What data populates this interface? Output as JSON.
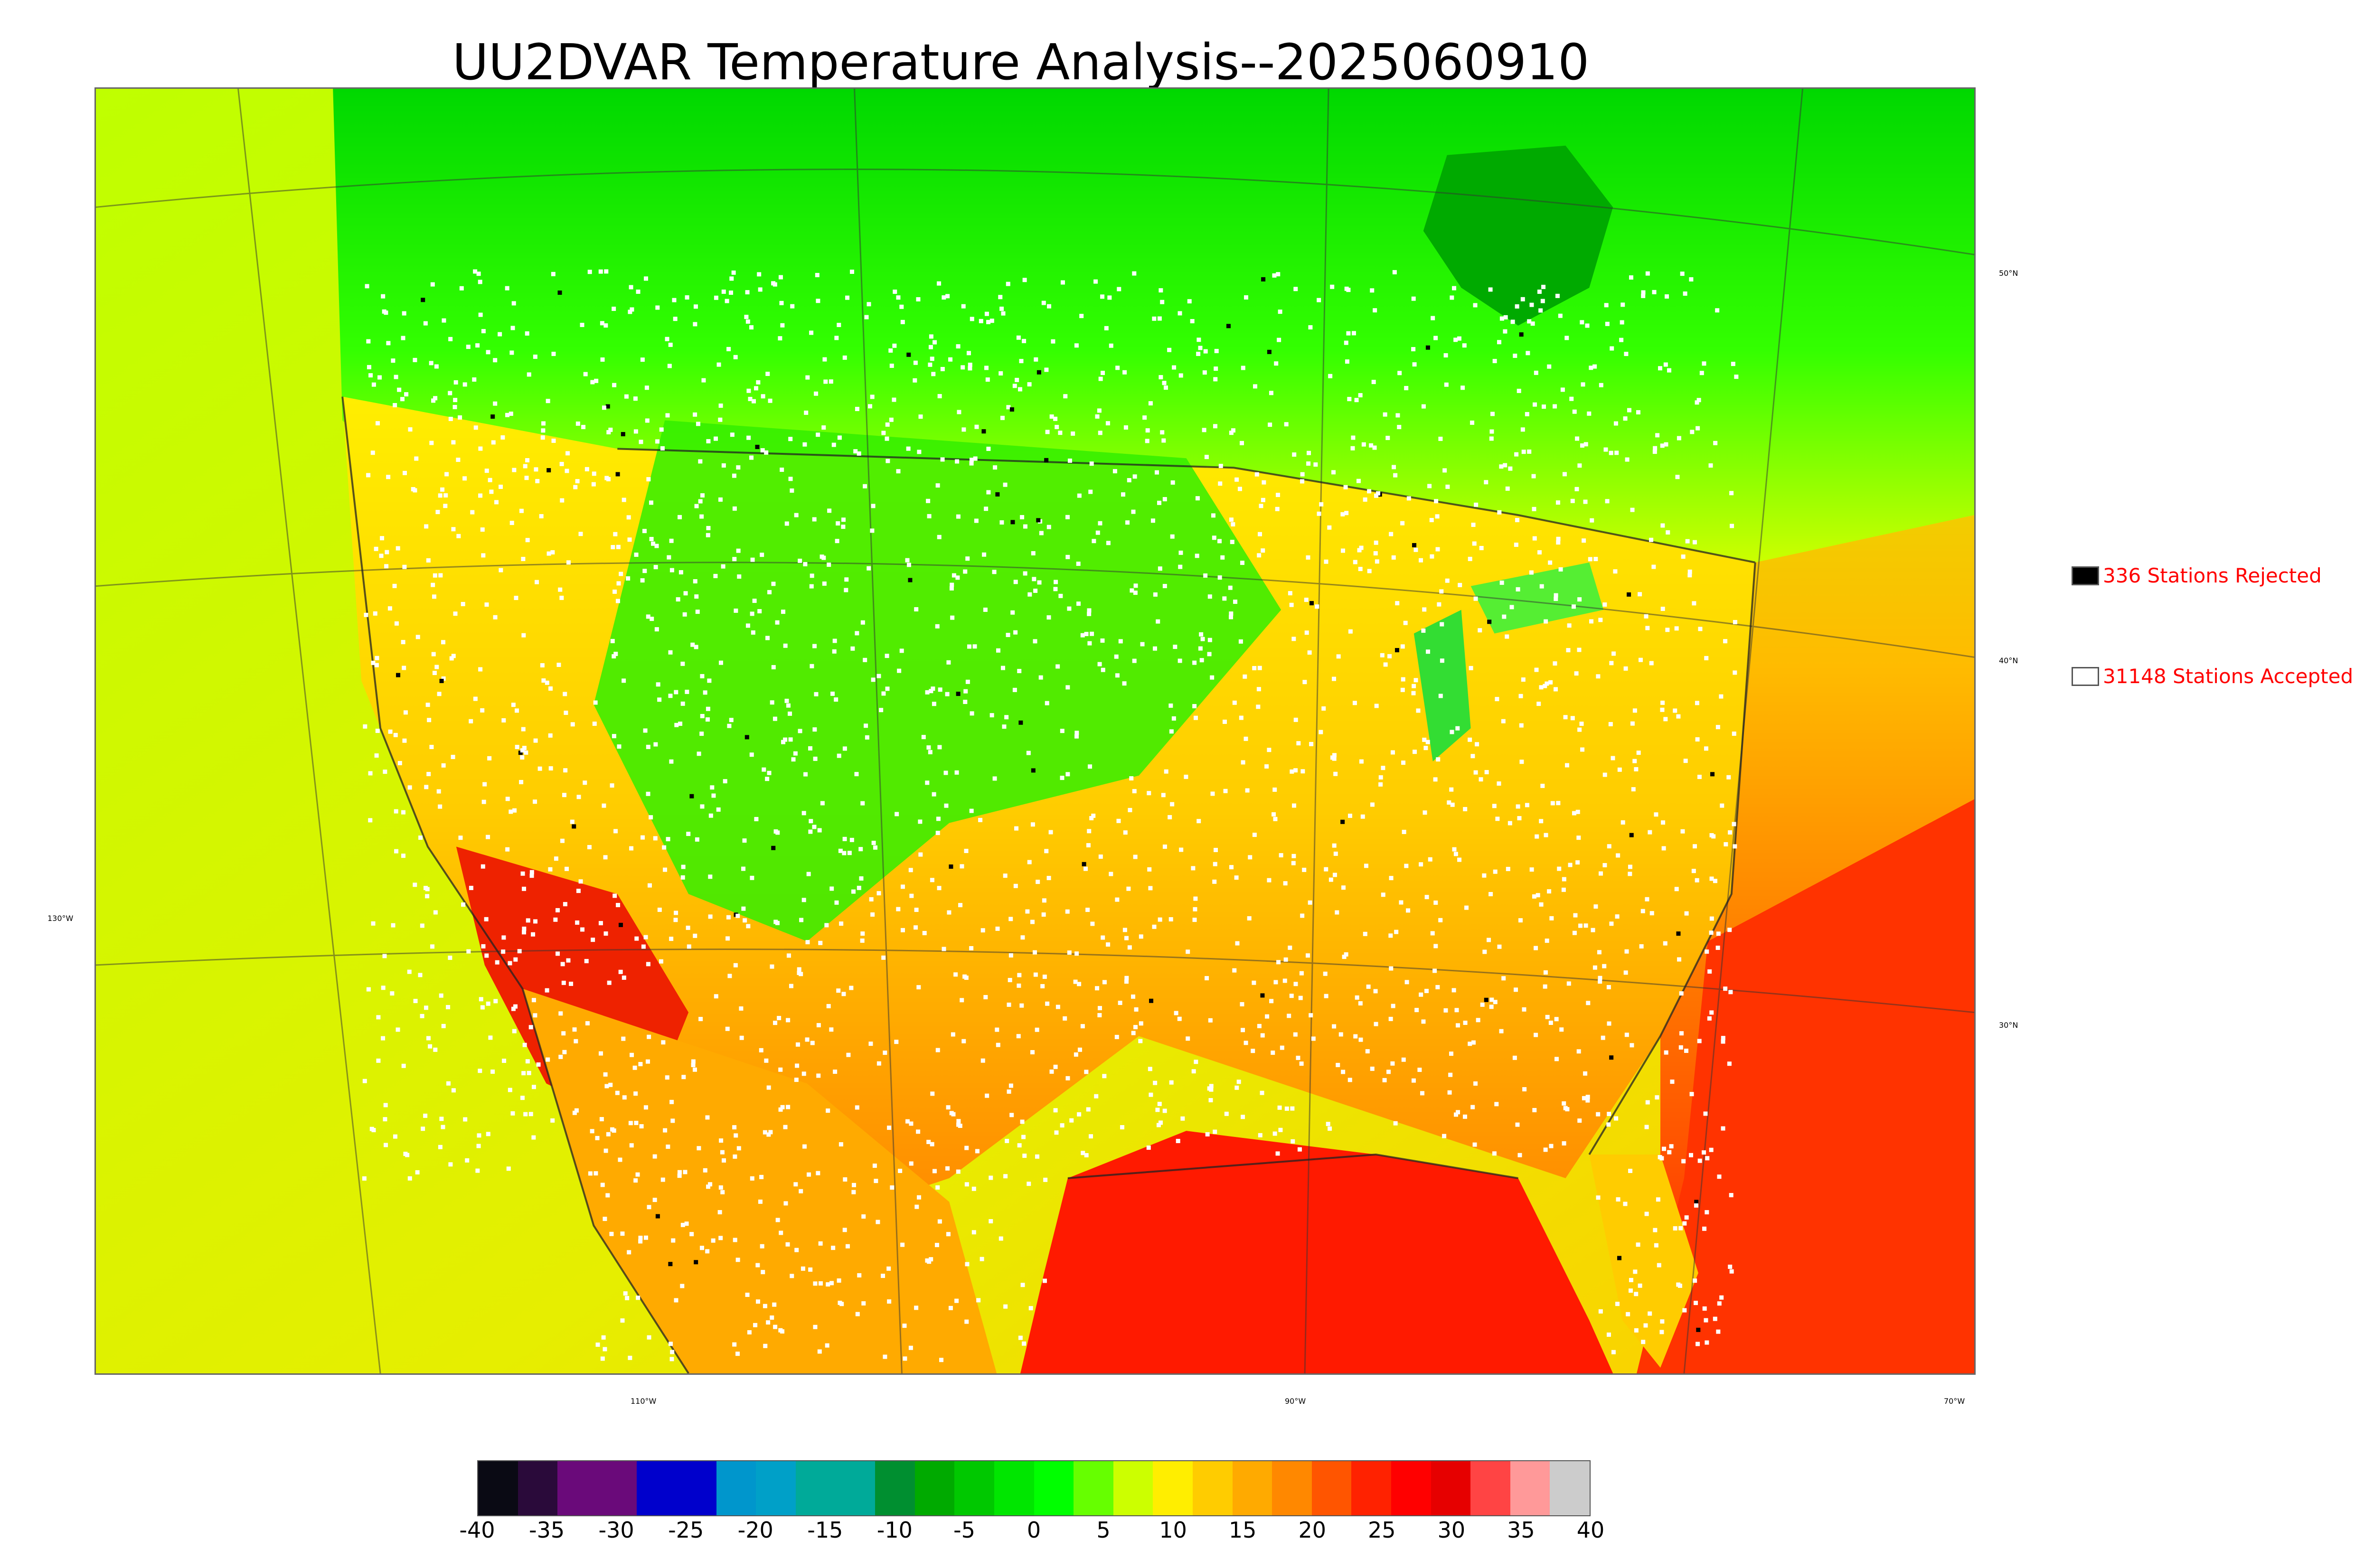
{
  "title": "UU2DVAR Temperature Analysis--2025060910",
  "latitude_labels": [
    "50°N",
    "40°N",
    "30°N"
  ],
  "longitude_labels": [
    "130°W",
    "110°W",
    "90°W",
    "70°W"
  ],
  "legend": {
    "rejected": {
      "label": "336 Stations Rejected",
      "color": "#000000"
    },
    "accepted": {
      "label": "31148 Stations Accepted",
      "color": "#ffffff"
    }
  },
  "colorbar": {
    "ticks": [
      "-40",
      "-35",
      "-30",
      "-25",
      "-20",
      "-15",
      "-10",
      "-5",
      "0",
      "5",
      "10",
      "15",
      "20",
      "25",
      "30",
      "35",
      "40"
    ],
    "colors": [
      "#0a0a14",
      "#2a0a3a",
      "#6a0a7a",
      "#6a0a7a",
      "#0000cc",
      "#0000cc",
      "#0096cc",
      "#00a0c8",
      "#00aa99",
      "#00aa99",
      "#008f30",
      "#00aa00",
      "#00c800",
      "#00e600",
      "#00ff00",
      "#66ff00",
      "#ccff00",
      "#ffee00",
      "#ffcc00",
      "#ffaa00",
      "#ff8800",
      "#ff5500",
      "#ff2200",
      "#ff0000",
      "#e60000",
      "#ff4444",
      "#ff9999",
      "#cccccc"
    ]
  },
  "colors": {
    "ocean_west": "#d8e800",
    "land_north": "#00e600",
    "land_south": "#ffaa00",
    "gulf": "#ff1a00",
    "atlantic_south": "#ff3300"
  }
}
